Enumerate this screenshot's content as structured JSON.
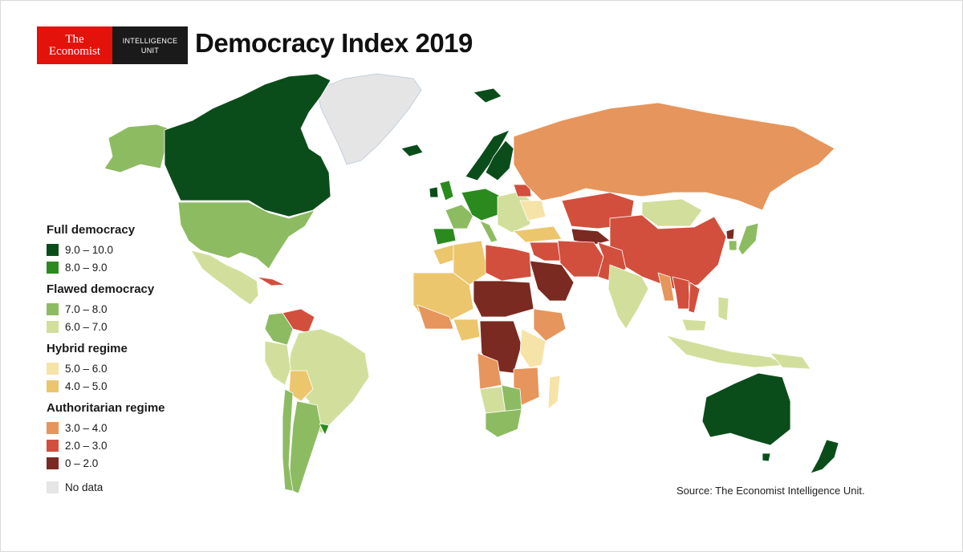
{
  "header": {
    "logo_line1": "The",
    "logo_line2": "Economist",
    "unit_line1": "INTELLIGENCE",
    "unit_line2": "UNIT",
    "title": "Democracy Index 2019"
  },
  "legend": {
    "groups": [
      {
        "heading": "Full democracy",
        "items": [
          {
            "label": "9.0 – 10.0",
            "color": "#0b4d1a"
          },
          {
            "label": "8.0 – 9.0",
            "color": "#2a8a1e"
          }
        ]
      },
      {
        "heading": "Flawed democracy",
        "items": [
          {
            "label": "7.0 – 8.0",
            "color": "#8dbb62"
          },
          {
            "label": "6.0 – 7.0",
            "color": "#d2df9c"
          }
        ]
      },
      {
        "heading": "Hybrid regime",
        "items": [
          {
            "label": "5.0 – 6.0",
            "color": "#f6e3a8"
          },
          {
            "label": "4.0 – 5.0",
            "color": "#ebc66d"
          }
        ]
      },
      {
        "heading": "Authoritarian regime",
        "items": [
          {
            "label": "3.0 – 4.0",
            "color": "#e6955c"
          },
          {
            "label": "2.0 – 3.0",
            "color": "#d24f3d"
          },
          {
            "label": "0 – 2.0",
            "color": "#7a2a20"
          }
        ]
      }
    ],
    "no_data": {
      "label": "No data",
      "color": "#e5e5e5"
    }
  },
  "source": "Source: The Economist Intelligence Unit.",
  "colors": {
    "full_high": "#0b4d1a",
    "full_low": "#2a8a1e",
    "flawed_high": "#8dbb62",
    "flawed_low": "#d2df9c",
    "hybrid_high": "#f6e3a8",
    "hybrid_low": "#ebc66d",
    "auth_high": "#e6955c",
    "auth_mid": "#d24f3d",
    "auth_low": "#7a2a20",
    "no_data": "#e5e5e5",
    "brand_red": "#e3120b"
  }
}
